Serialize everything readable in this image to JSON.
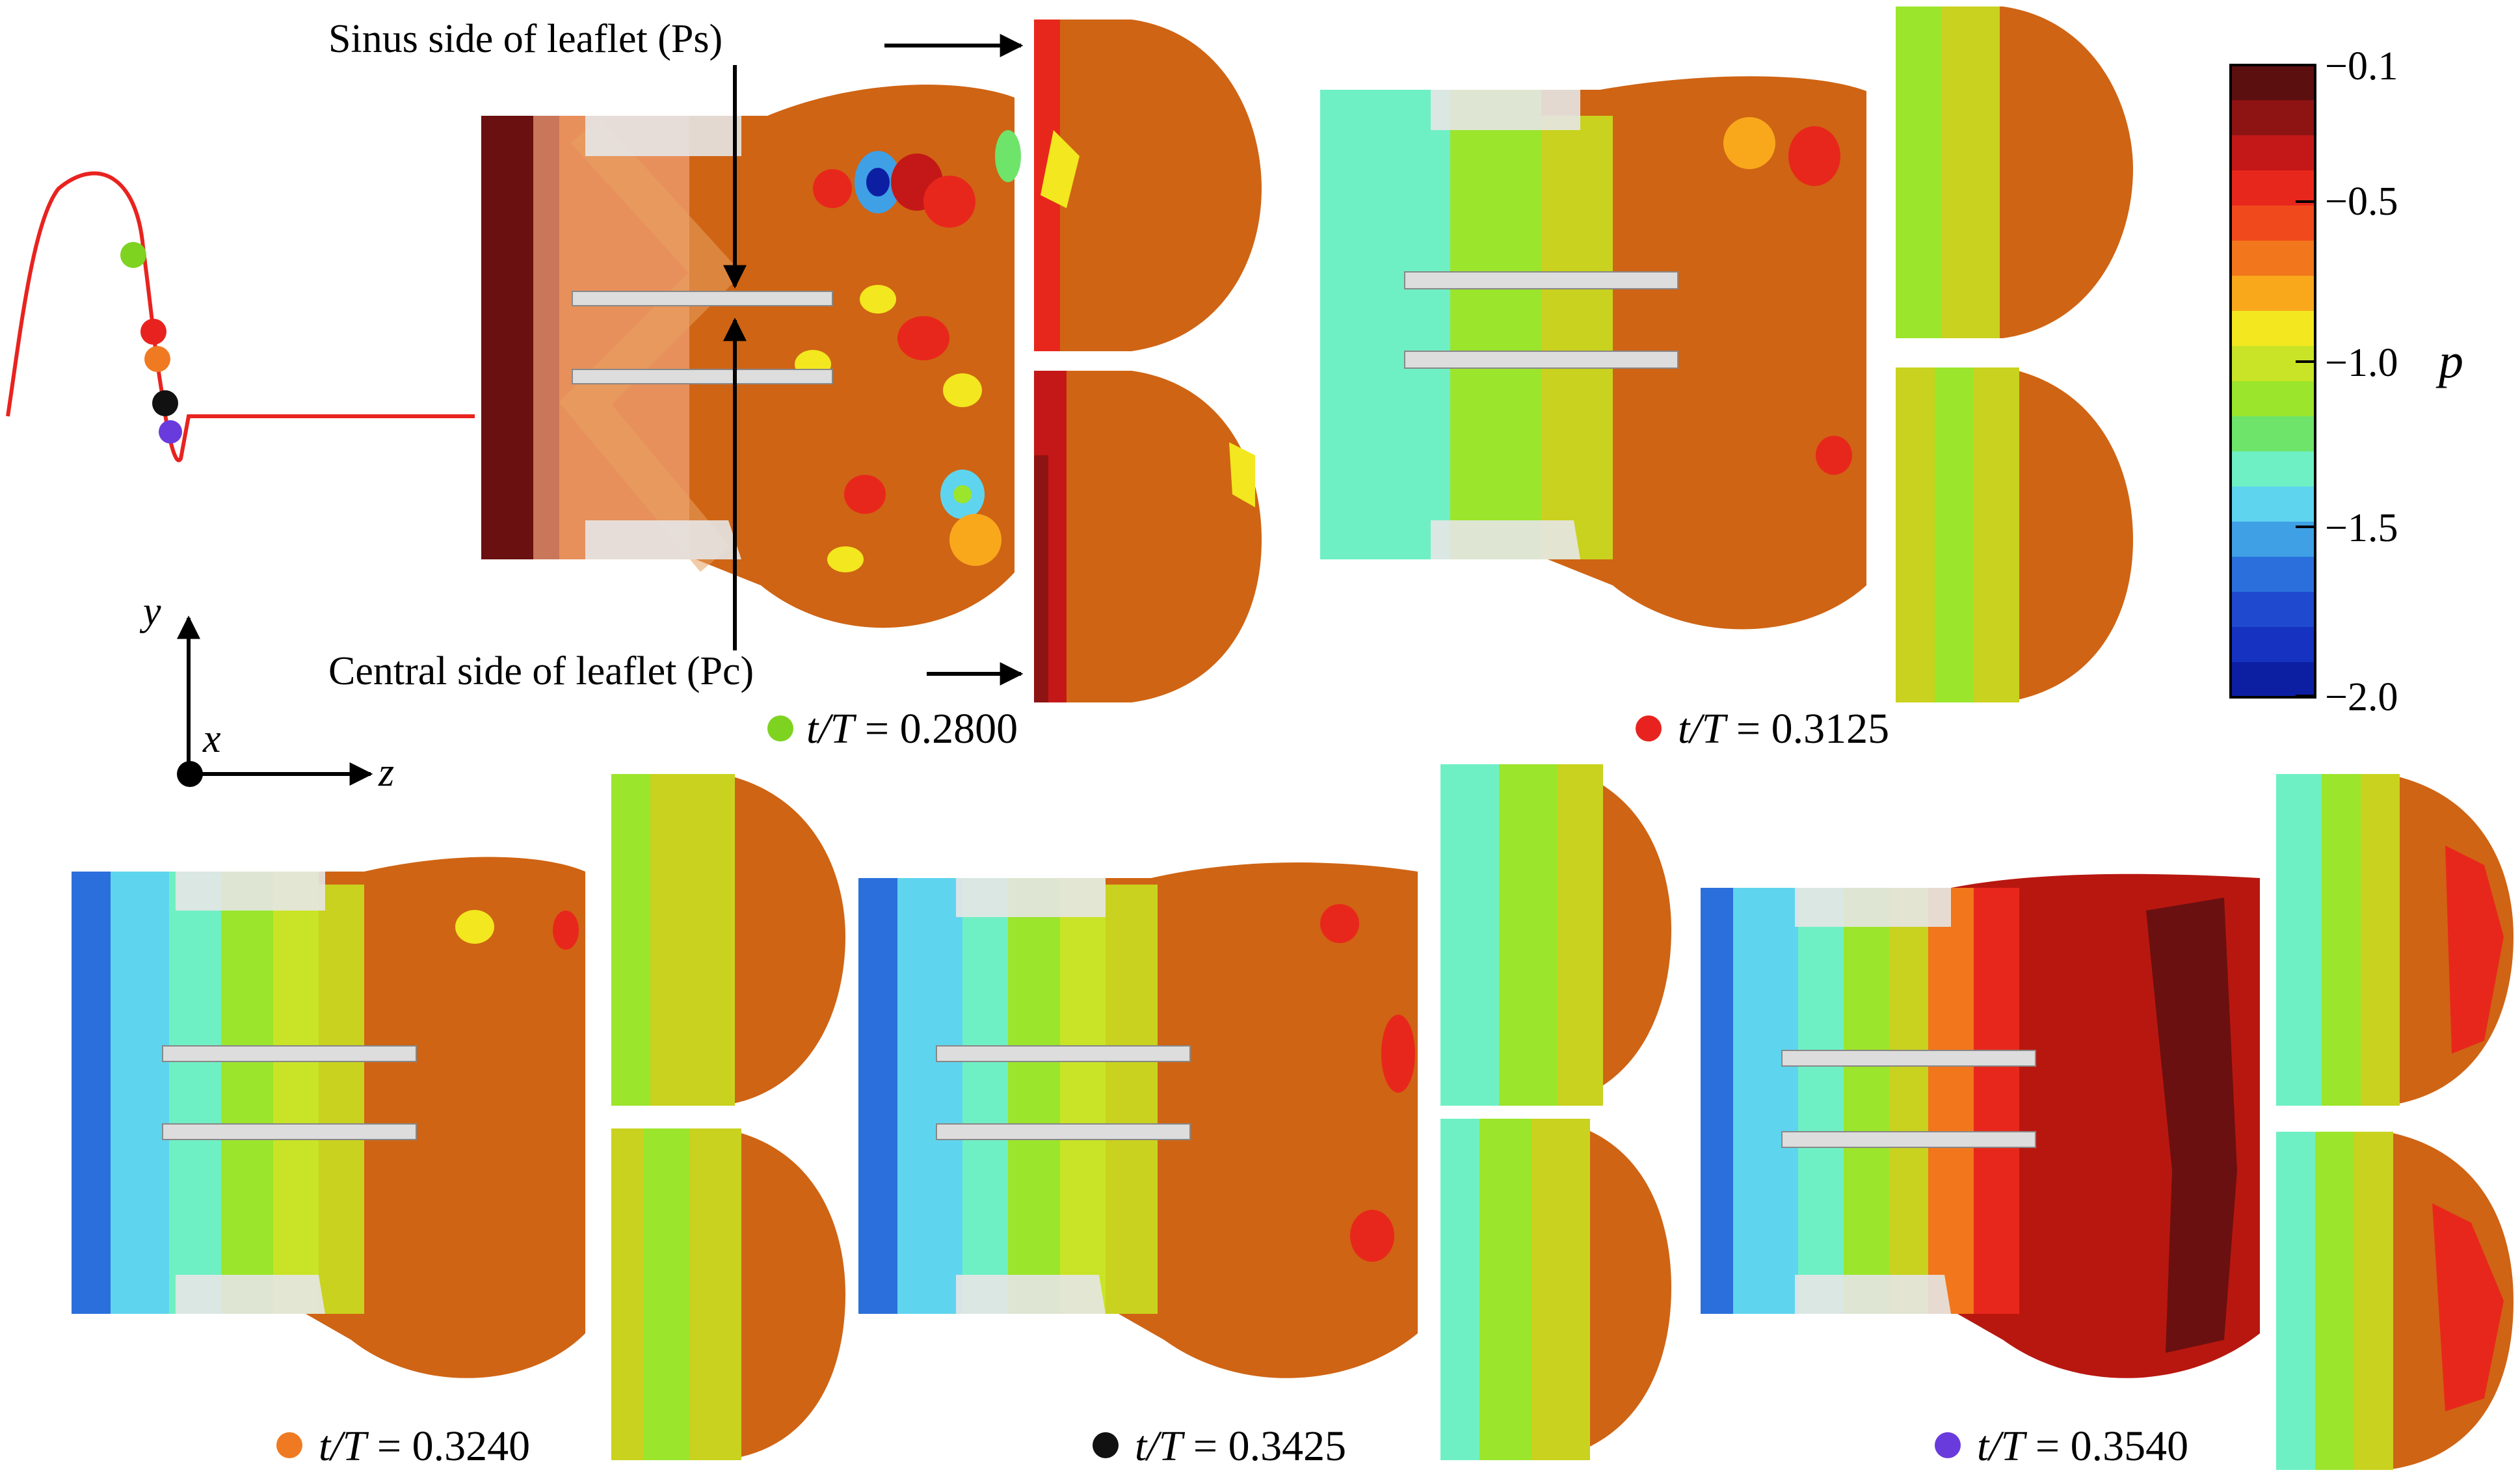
{
  "annotations": {
    "sinus": "Sinus side of leaflet (Ps)",
    "central": "Central side of leaflet (Pc)"
  },
  "axes": {
    "y": "y",
    "x": "x",
    "z": "z"
  },
  "colorbar": {
    "symbol": "p",
    "ticks": [
      "−0.1",
      "−0.5",
      "−1.0",
      "−1.5",
      "−2.0"
    ],
    "colors": [
      "#5c0f0f",
      "#8e1313",
      "#c41818",
      "#e8271c",
      "#f04a1c",
      "#f2761b",
      "#f9a81c",
      "#f3e71f",
      "#c9e426",
      "#9be52c",
      "#6ee46a",
      "#6ff0c4",
      "#5fd4ee",
      "#3fa0e6",
      "#2b6fdc",
      "#1f49cf",
      "#1532c1",
      "#0c1fa3"
    ]
  },
  "waveform": {
    "curve_color": "#e8231f",
    "markers": [
      {
        "name": "marker-green",
        "color": "#7ed321"
      },
      {
        "name": "marker-red",
        "color": "#e8231f"
      },
      {
        "name": "marker-orange",
        "color": "#f07a22"
      },
      {
        "name": "marker-black",
        "color": "#111111"
      },
      {
        "name": "marker-purple",
        "color": "#6a3bdc"
      }
    ]
  },
  "panels": [
    {
      "label_t": "t/T",
      "eq": " = ",
      "value": "0.2800",
      "dot": "#7ed321"
    },
    {
      "label_t": "t/T",
      "eq": " = ",
      "value": "0.3125",
      "dot": "#e8231f"
    },
    {
      "label_t": "t/T",
      "eq": " = ",
      "value": "0.3240",
      "dot": "#f07a22"
    },
    {
      "label_t": "t/T",
      "eq": " = ",
      "value": "0.3425",
      "dot": "#111111"
    },
    {
      "label_t": "t/T",
      "eq": " = ",
      "value": "0.3540",
      "dot": "#6a3bdc"
    }
  ]
}
